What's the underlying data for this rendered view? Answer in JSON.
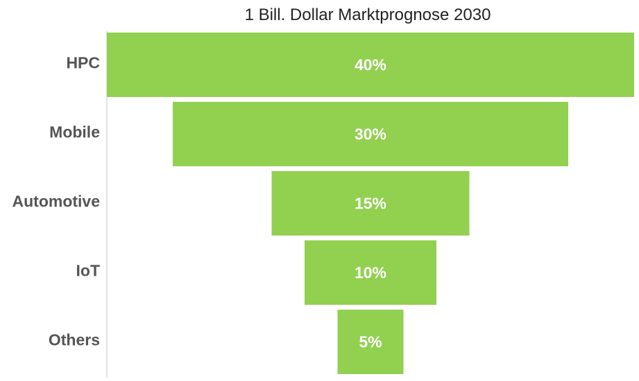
{
  "chart_data": {
    "type": "bar",
    "orientation": "horizontal-funnel",
    "title": "1 Bill. Dollar Marktprognose 2030",
    "categories": [
      "HPC",
      "Mobile",
      "Automotive",
      "IoT",
      "Others"
    ],
    "values": [
      40,
      30,
      15,
      10,
      5
    ],
    "value_labels": [
      "40%",
      "30%",
      "15%",
      "10%",
      "5%"
    ],
    "bar_color": "#92d050",
    "grid": false,
    "legend": "none"
  }
}
